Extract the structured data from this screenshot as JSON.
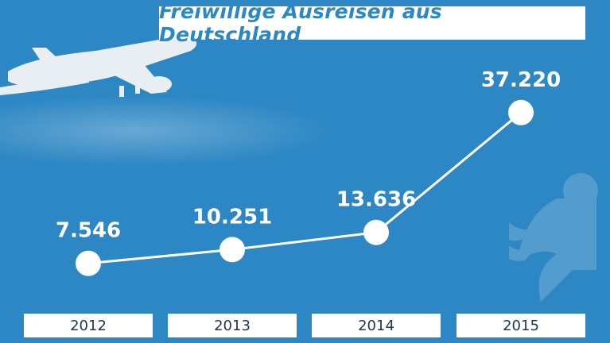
{
  "colors": {
    "background": "#2d87c4",
    "title_text": "#2d87c4",
    "line": "#ffffff",
    "marker": "#ffffff",
    "category_text": "#1f3550"
  },
  "decorations": [
    "airplane-icon",
    "federal-eagle-icon"
  ],
  "chart_data": {
    "type": "line",
    "title": "Freiwillige Ausreisen aus Deutschland",
    "xlabel": "",
    "ylabel": "",
    "grid": false,
    "categories": [
      "2012",
      "2013",
      "2014",
      "2015"
    ],
    "values": [
      7546,
      10251,
      13636,
      37220
    ],
    "value_labels": [
      "7.546",
      "10.251",
      "13.636",
      "37.220"
    ],
    "ylim": [
      0,
      40000
    ]
  }
}
